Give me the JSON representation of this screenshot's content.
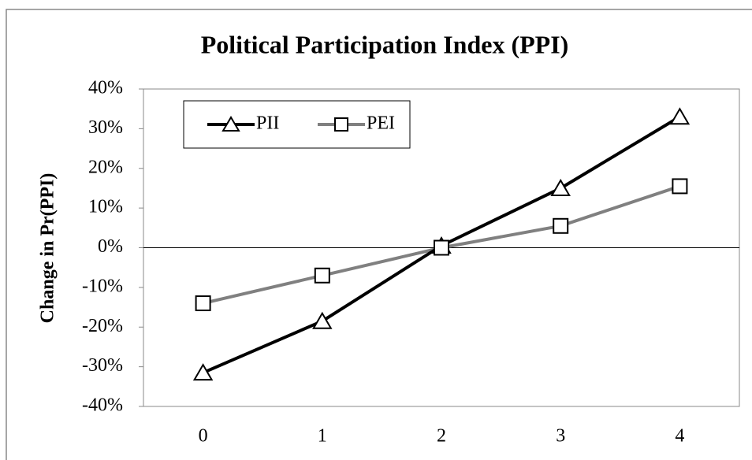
{
  "chart_data": {
    "type": "line",
    "title": "Political Participation Index (PPI)",
    "y_label": "Change in Pr(PPI)",
    "categories": [
      "0",
      "1",
      "2",
      "3",
      "4"
    ],
    "series": [
      {
        "name": "PII",
        "color": "#000000",
        "marker": "triangle",
        "values": [
          -31.5,
          -18.5,
          0.5,
          15,
          33
        ]
      },
      {
        "name": "PEI",
        "color": "#808080",
        "marker": "square",
        "values": [
          -14,
          -7,
          0,
          5.5,
          15.5
        ]
      }
    ],
    "ylim": [
      -40,
      40
    ],
    "yticks": [
      {
        "value": -40,
        "label": "-40%"
      },
      {
        "value": -30,
        "label": "-30%"
      },
      {
        "value": -20,
        "label": "-20%"
      },
      {
        "value": -10,
        "label": "-10%"
      },
      {
        "value": 0,
        "label": "0%"
      },
      {
        "value": 10,
        "label": "10%"
      },
      {
        "value": 20,
        "label": "20%"
      },
      {
        "value": 30,
        "label": "30%"
      },
      {
        "value": 40,
        "label": "40%"
      }
    ],
    "legend": "upper left"
  }
}
